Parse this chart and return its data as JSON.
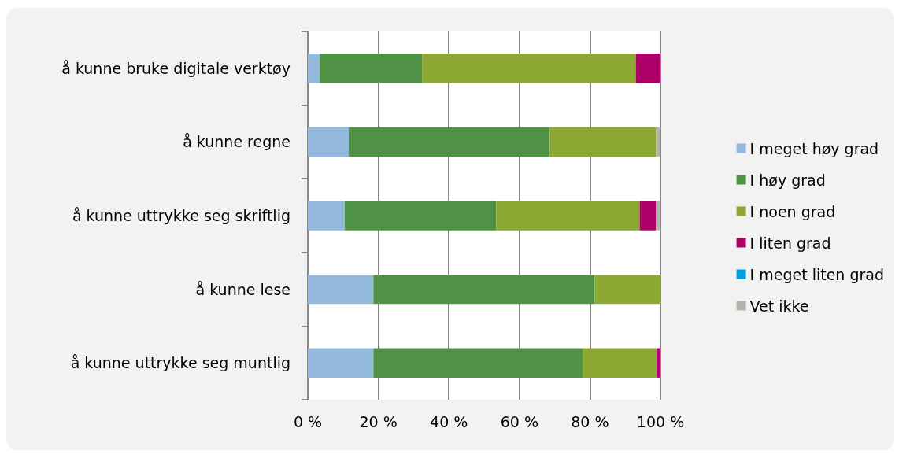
{
  "chart_data": {
    "type": "bar",
    "orientation": "horizontal",
    "stacked": true,
    "categories": [
      "å kunne bruke digitale verktøy",
      "å kunne regne",
      "å kunne uttrykke seg skriftlig",
      "å kunne lese",
      "å kunne uttrykke seg muntlig"
    ],
    "series": [
      {
        "name": "I meget høy grad",
        "color": "#93b9dc",
        "values": [
          3.4,
          11.6,
          10.5,
          18.6,
          18.6
        ]
      },
      {
        "name": "I høy grad",
        "color": "#509245",
        "values": [
          29,
          57,
          42.9,
          62.7,
          59.3
        ]
      },
      {
        "name": "I noen grad",
        "color": "#8da832",
        "values": [
          60.6,
          30.1,
          40.7,
          18.7,
          21
        ]
      },
      {
        "name": "I liten grad",
        "color": "#ad0069",
        "values": [
          7,
          0,
          4.6,
          0,
          1.1
        ]
      },
      {
        "name": "I meget liten grad",
        "color": "#00a0e0",
        "values": [
          0,
          0,
          0,
          0,
          0
        ]
      },
      {
        "name": "Vet ikke",
        "color": "#b4b4ac",
        "values": [
          0,
          1.3,
          1.3,
          0,
          0
        ]
      }
    ],
    "xlim": [
      0,
      100
    ],
    "xticks": [
      {
        "value": 0,
        "label": "0 %"
      },
      {
        "value": 20,
        "label": "20 %"
      },
      {
        "value": 40,
        "label": "40 %"
      },
      {
        "value": 60,
        "label": "60 %"
      },
      {
        "value": 80,
        "label": "80 %"
      },
      {
        "value": 100,
        "label": "100 %"
      }
    ],
    "grid": "x",
    "legend": "right"
  }
}
